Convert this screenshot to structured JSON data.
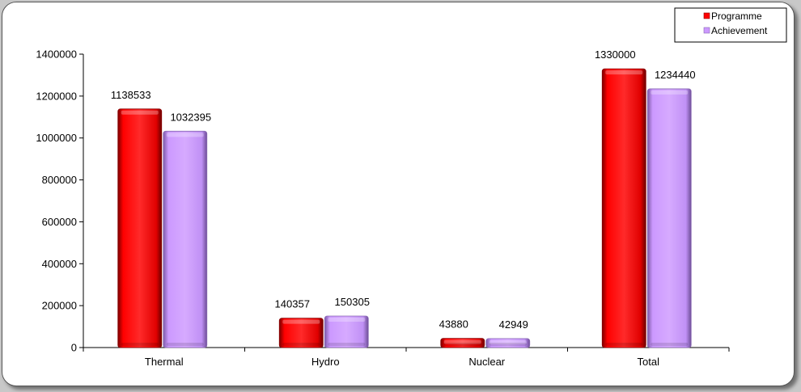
{
  "chart_data": {
    "type": "bar",
    "title": "",
    "xlabel": "",
    "ylabel": "",
    "categories": [
      "Thermal",
      "Hydro",
      "Nuclear",
      "Total"
    ],
    "series": [
      {
        "name": "Programme",
        "color": "#ff0000",
        "values": [
          1138533,
          140357,
          43880,
          1330000
        ]
      },
      {
        "name": "Achievement",
        "color": "#cc99ff",
        "values": [
          1032395,
          150305,
          42949,
          1234440
        ]
      }
    ],
    "ylim": [
      0,
      1400000
    ],
    "yticks": [
      0,
      200000,
      400000,
      600000,
      800000,
      1000000,
      1200000,
      1400000
    ],
    "grid": false,
    "legend_position": "top-right",
    "data_labels": true
  }
}
